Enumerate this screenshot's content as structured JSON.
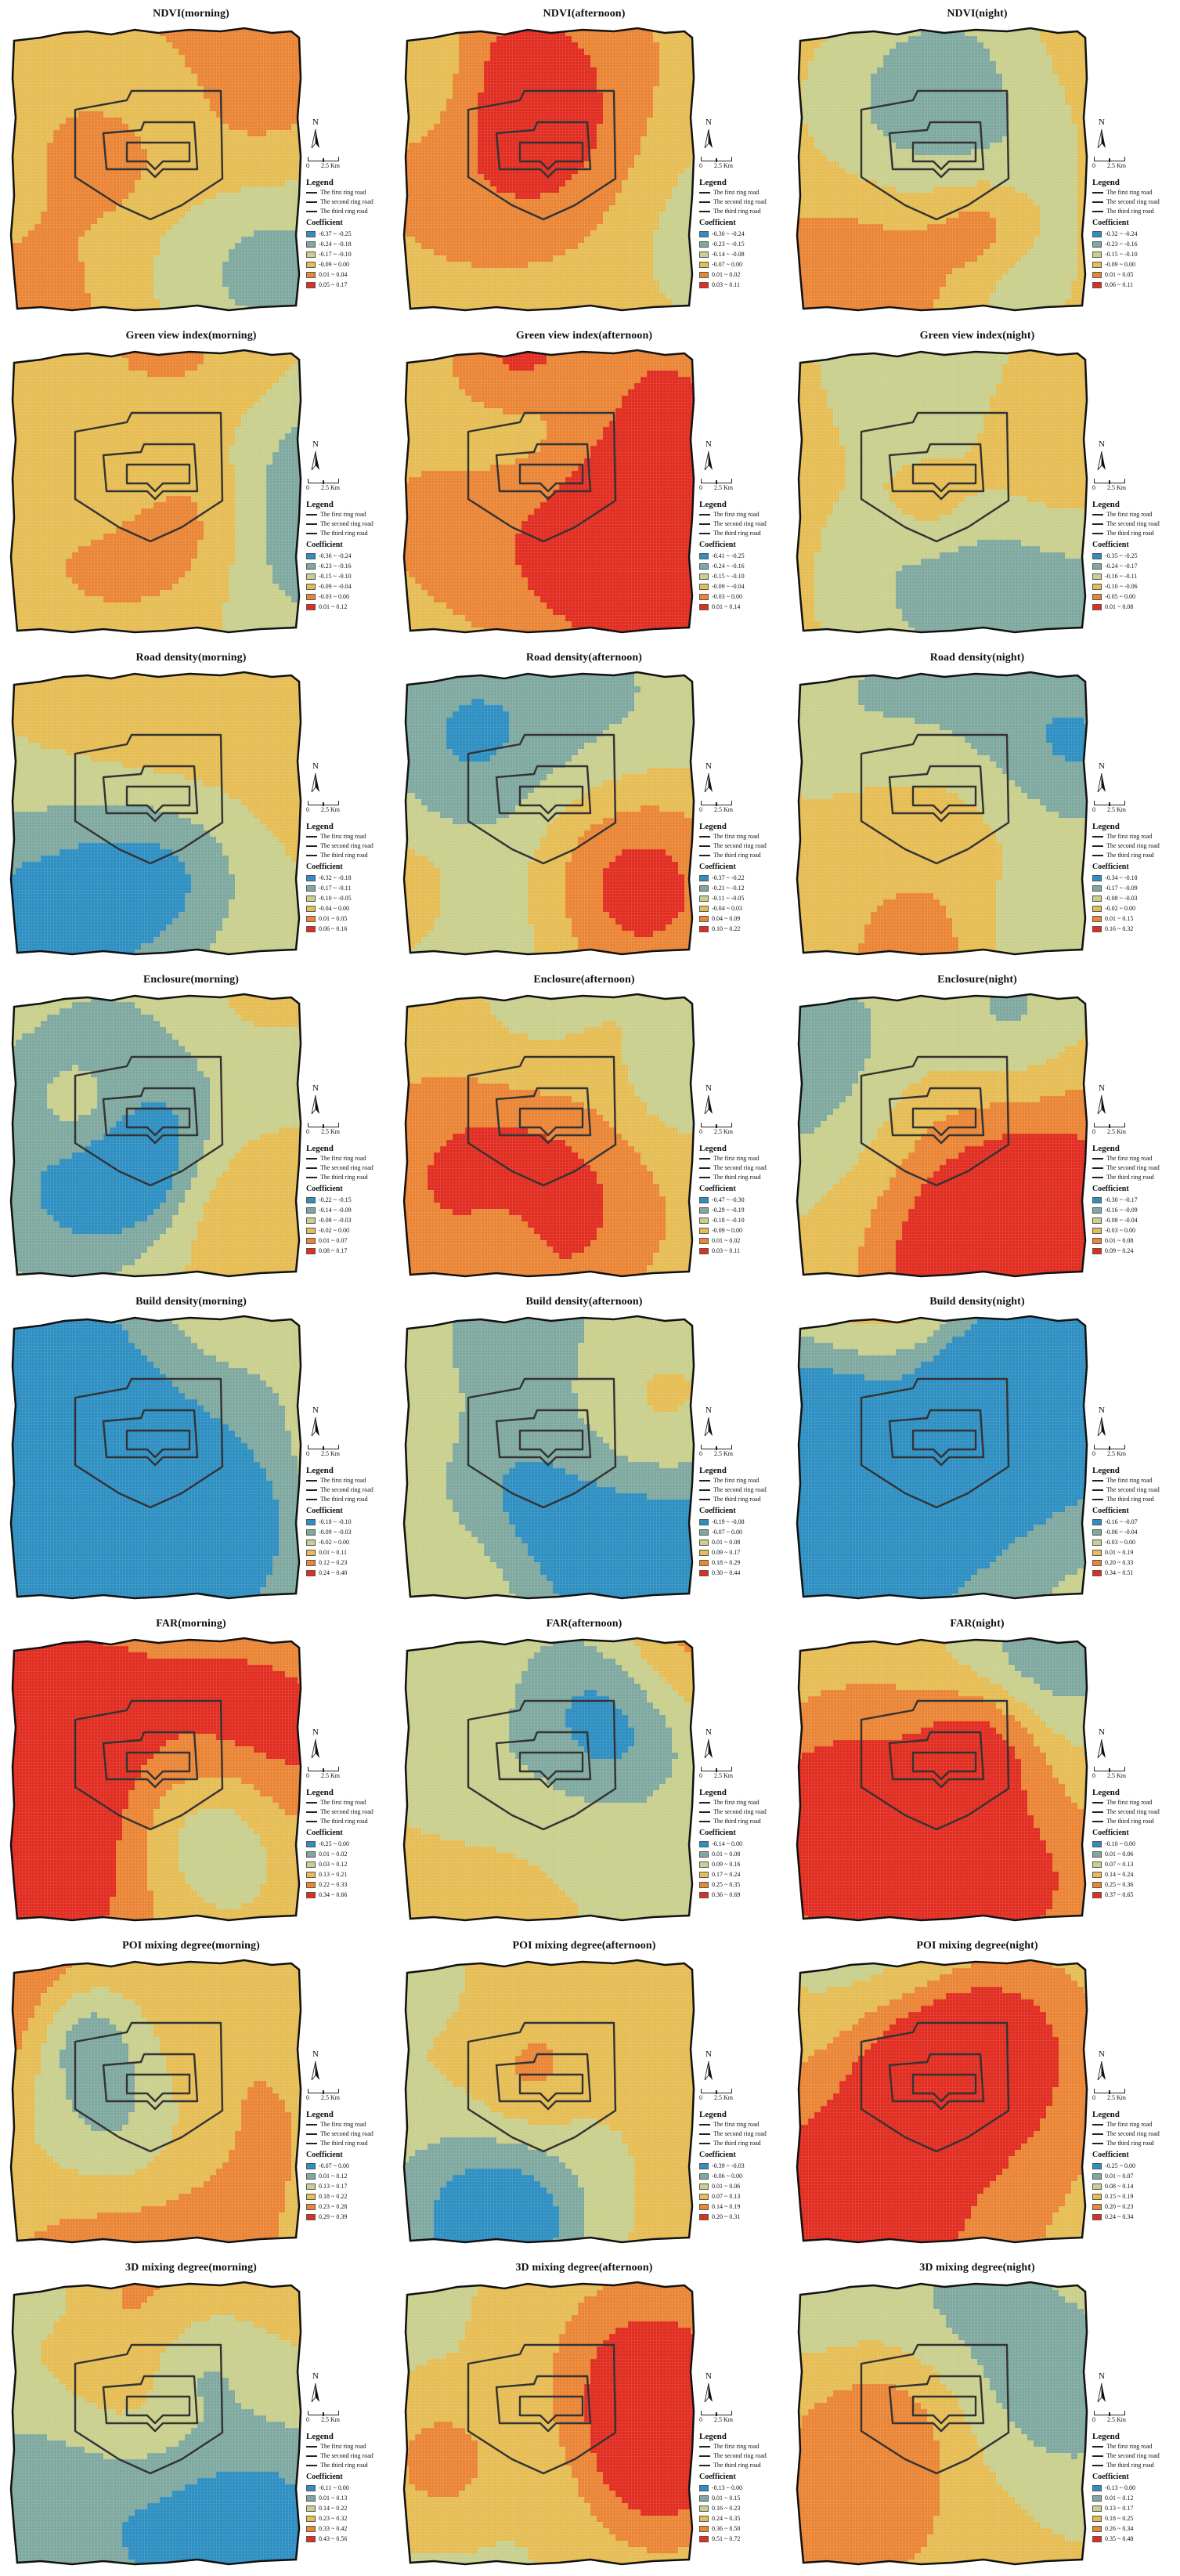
{
  "colors": {
    "class_colors": [
      "#2e8fc2",
      "#7fa9a0",
      "#c9cf8d",
      "#e6bd54",
      "#ea8536",
      "#e12d21"
    ],
    "road": "#333333"
  },
  "legend": {
    "title": "Legend",
    "roads": [
      "The first ring road",
      "The second ring road",
      "The third ring road"
    ],
    "coefficient_title": "Coefficient"
  },
  "north_label": "N",
  "scale": {
    "zero": "0",
    "label": "2.5 Km"
  },
  "panels": [
    {
      "title": "NDVI(morning)",
      "classes": [
        "-0.37 ~ -0.25",
        "-0.24 ~ -0.18",
        "-0.17 ~ -0.10",
        "-0.09 ~ 0.00",
        "0.01 ~ 0.04",
        "0.05 ~ 0.17"
      ],
      "seed": 1,
      "bias": 0.35
    },
    {
      "title": "NDVI(afternoon)",
      "classes": [
        "-0.30 ~ -0.24",
        "-0.23 ~ -0.15",
        "-0.14 ~ -0.08",
        "-0.07 ~ 0.00",
        "0.01 ~ 0.02",
        "0.03 ~ 0.11"
      ],
      "seed": 2,
      "bias": 0.35
    },
    {
      "title": "NDVI(night)",
      "classes": [
        "-0.32 ~ -0.24",
        "-0.23 ~ -0.16",
        "-0.15 ~ -0.10",
        "-0.09 ~ 0.00",
        "0.01 ~ 0.05",
        "0.06 ~ 0.11"
      ],
      "seed": 3,
      "bias": 0.45
    },
    {
      "title": "Green view index(morning)",
      "classes": [
        "-0.36 ~ -0.24",
        "-0.23 ~ -0.16",
        "-0.15 ~ -0.10",
        "-0.09 ~ -0.04",
        "-0.03 ~ 0.00",
        "0.01 ~ 0.12"
      ],
      "seed": 4,
      "bias": 0.0
    },
    {
      "title": "Green view index(afternoon)",
      "classes": [
        "-0.41 ~ -0.25",
        "-0.24 ~ -0.16",
        "-0.15 ~ -0.10",
        "-0.09 ~ -0.04",
        "-0.03 ~ 0.00",
        "0.01 ~ 0.14"
      ],
      "seed": 5,
      "bias": 0.0
    },
    {
      "title": "Green view index(night)",
      "classes": [
        "-0.35 ~ -0.25",
        "-0.24 ~ -0.17",
        "-0.16 ~ -0.11",
        "-0.10 ~ -0.06",
        "-0.05 ~ 0.00",
        "0.01 ~ 0.08"
      ],
      "seed": 6,
      "bias": 0.1
    },
    {
      "title": "Road density(morning)",
      "classes": [
        "-0.32 ~ -0.18",
        "-0.17 ~ -0.11",
        "-0.10 ~ -0.05",
        "-0.04 ~ 0.00",
        "0.01 ~ 0.05",
        "0.06 ~ 0.16"
      ],
      "seed": 7,
      "bias": 0.0
    },
    {
      "title": "Road density(afternoon)",
      "classes": [
        "-0.37 ~ -0.22",
        "-0.21 ~ -0.12",
        "-0.11 ~ -0.05",
        "-0.04 ~ 0.03",
        "0.04 ~ 0.09",
        "0.10 ~ 0.22"
      ],
      "seed": 8,
      "bias": 0.1
    },
    {
      "title": "Road density(night)",
      "classes": [
        "-0.34 ~ -0.18",
        "-0.17 ~ -0.09",
        "-0.08 ~ -0.03",
        "-0.02 ~ 0.00",
        "0.01 ~ 0.15",
        "0.16 ~ 0.32"
      ],
      "seed": 9,
      "bias": 0.2
    },
    {
      "title": "Enclosure(morning)",
      "classes": [
        "-0.22 ~ -0.15",
        "-0.14 ~ -0.09",
        "-0.08 ~ -0.03",
        "-0.02 ~ 0.00",
        "0.01 ~ 0.07",
        "0.08 ~ 0.17"
      ],
      "seed": 10,
      "bias": 0.05
    },
    {
      "title": "Enclosure(afternoon)",
      "classes": [
        "-0.47 ~ -0.30",
        "-0.29 ~ -0.19",
        "-0.18 ~ -0.10",
        "-0.09 ~ 0.00",
        "0.01 ~ 0.02",
        "0.03 ~ 0.11"
      ],
      "seed": 11,
      "bias": 0.2
    },
    {
      "title": "Enclosure(night)",
      "classes": [
        "-0.30 ~ -0.17",
        "-0.16 ~ -0.09",
        "-0.08 ~ -0.04",
        "-0.03 ~ 0.00",
        "0.01 ~ 0.08",
        "0.09 ~ 0.24"
      ],
      "seed": 12,
      "bias": 0.1
    },
    {
      "title": "Build density(morning)",
      "classes": [
        "-0.18 ~ -0.10",
        "-0.09 ~ -0.03",
        "-0.02 ~ 0.00",
        "0.01 ~ 0.11",
        "0.12 ~ 0.23",
        "0.24 ~ 0.40"
      ],
      "seed": 13,
      "bias": 0.0
    },
    {
      "title": "Build density(afternoon)",
      "classes": [
        "-0.19 ~ -0.08",
        "-0.07 ~ 0.00",
        "0.01 ~ 0.08",
        "0.09 ~ 0.17",
        "0.18 ~ 0.29",
        "0.30 ~ 0.44"
      ],
      "seed": 14,
      "bias": -0.2
    },
    {
      "title": "Build density(night)",
      "classes": [
        "-0.16 ~ -0.07",
        "-0.06 ~ -0.04",
        "-0.03 ~ 0.00",
        "0.01 ~ 0.19",
        "0.20 ~ 0.33",
        "0.34 ~ 0.51"
      ],
      "seed": 15,
      "bias": -0.1
    },
    {
      "title": "FAR(morning)",
      "classes": [
        "-0.25 ~ 0.00",
        "0.01 ~ 0.02",
        "0.03 ~ 0.12",
        "0.13 ~ 0.21",
        "0.22 ~ 0.33",
        "0.34 ~ 0.66"
      ],
      "seed": 16,
      "bias": 0.1
    },
    {
      "title": "FAR(afternoon)",
      "classes": [
        "-0.14 ~ 0.00",
        "0.01 ~ 0.08",
        "0.09 ~ 0.16",
        "0.17 ~ 0.24",
        "0.25 ~ 0.35",
        "0.36 ~ 0.69"
      ],
      "seed": 17,
      "bias": 0.0
    },
    {
      "title": "FAR(night)",
      "classes": [
        "-0.10 ~ 0.00",
        "0.01 ~ 0.06",
        "0.07 ~ 0.13",
        "0.14 ~ 0.24",
        "0.25 ~ 0.36",
        "0.37 ~ 0.65"
      ],
      "seed": 18,
      "bias": 0.0
    },
    {
      "title": "POI mixing degree(morning)",
      "classes": [
        "-0.07 ~ 0.00",
        "0.01 ~ 0.12",
        "0.13 ~ 0.17",
        "0.18 ~ 0.22",
        "0.23 ~ 0.28",
        "0.29 ~ 0.39"
      ],
      "seed": 19,
      "bias": 0.2
    },
    {
      "title": "POI mixing degree(afternoon)",
      "classes": [
        "-0.39 ~ -0.03",
        "-0.06 ~ 0.00",
        "0.01 ~ 0.06",
        "0.07 ~ 0.13",
        "0.14 ~ 0.19",
        "0.20 ~ 0.31"
      ],
      "seed": 20,
      "bias": 0.3
    },
    {
      "title": "POI mixing degree(night)",
      "classes": [
        "-0.25 ~ 0.00",
        "0.01 ~ 0.07",
        "0.08 ~ 0.14",
        "0.15 ~ 0.19",
        "0.20 ~ 0.23",
        "0.24 ~ 0.34"
      ],
      "seed": 21,
      "bias": 0.3
    },
    {
      "title": "3D mixing degree(morning)",
      "classes": [
        "-0.11 ~ 0.00",
        "0.01 ~ 0.13",
        "0.14 ~ 0.22",
        "0.23 ~ 0.32",
        "0.33 ~ 0.42",
        "0.43 ~ 0.56"
      ],
      "seed": 22,
      "bias": 0.05
    },
    {
      "title": "3D mixing degree(afternoon)",
      "classes": [
        "-0.13 ~ 0.00",
        "0.01 ~ 0.15",
        "0.16 ~ 0.23",
        "0.24 ~ 0.35",
        "0.36 ~ 0.50",
        "0.51 ~ 0.72"
      ],
      "seed": 23,
      "bias": -0.05
    },
    {
      "title": "3D mixing degree(night)",
      "classes": [
        "-0.13 ~ 0.00",
        "0.01 ~ 0.12",
        "0.13 ~ 0.17",
        "0.18 ~ 0.25",
        "0.26 ~ 0.34",
        "0.35 ~ 0.48"
      ],
      "seed": 24,
      "bias": 0.0
    }
  ]
}
